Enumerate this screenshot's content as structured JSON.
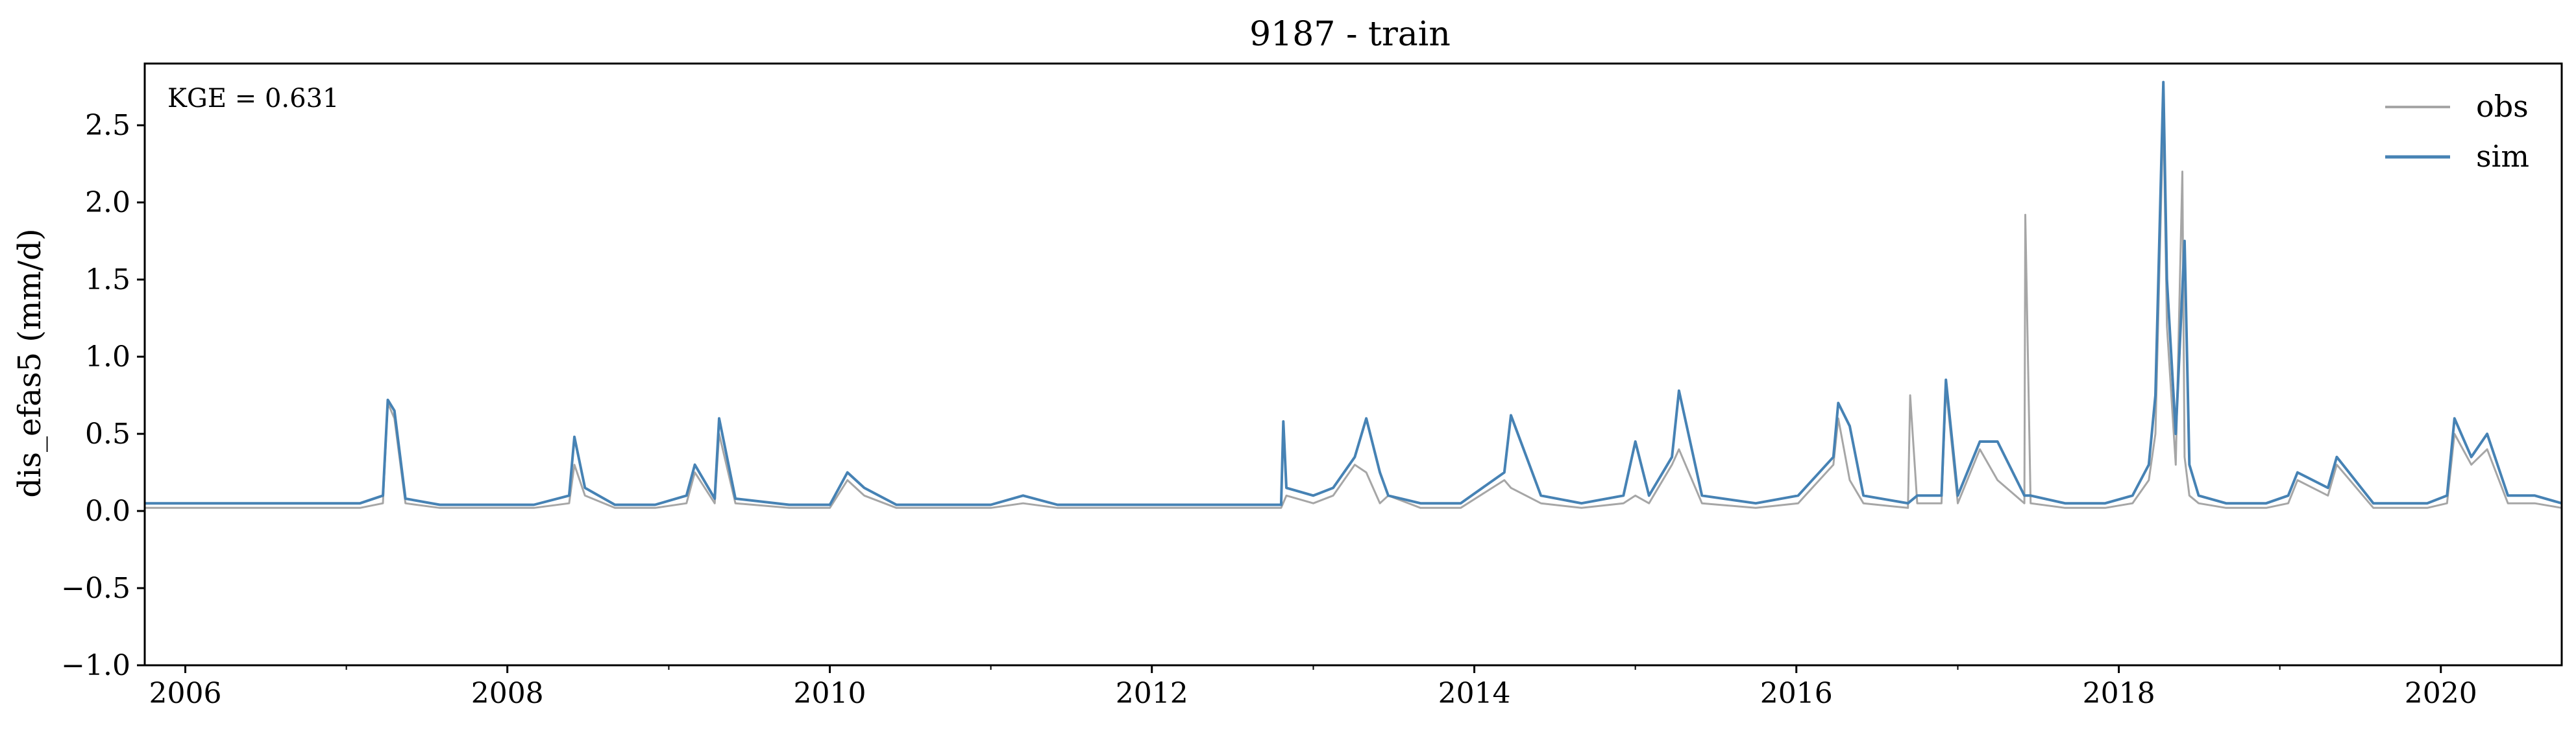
{
  "chart_data": {
    "type": "line",
    "title": "9187 - train",
    "xlabel": "",
    "ylabel": "dis_efas5 (mm/d)",
    "xlim": [
      "2005-10-01",
      "2020-10-01"
    ],
    "ylim": [
      -1.0,
      2.9
    ],
    "y_ticks": [
      -1.0,
      -0.5,
      0.0,
      0.5,
      1.0,
      1.5,
      2.0,
      2.5
    ],
    "y_tick_labels": [
      "−1.0",
      "−0.5",
      "0.0",
      "0.5",
      "1.0",
      "1.5",
      "2.0",
      "2.5"
    ],
    "x_ticks": [
      "2006-01-01",
      "2008-01-01",
      "2010-01-01",
      "2012-01-01",
      "2014-01-01",
      "2016-01-01",
      "2018-01-01",
      "2020-01-01"
    ],
    "x_tick_labels": [
      "2006",
      "2008",
      "2010",
      "2012",
      "2014",
      "2016",
      "2018",
      "2020"
    ],
    "x_minor_ticks": [
      "2007-01-01",
      "2009-01-01",
      "2011-01-01",
      "2013-01-01",
      "2015-01-01",
      "2017-01-01",
      "2019-01-01"
    ],
    "grid": false,
    "legend": "top-right",
    "annotation": "KGE = 0.631",
    "colors": {
      "obs": "#a6a6a6",
      "sim": "#4682b4"
    },
    "series": [
      {
        "name": "obs",
        "x": [
          "2005-10-01",
          "2006-01-15",
          "2006-06-01",
          "2006-09-01",
          "2006-12-01",
          "2007-02-01",
          "2007-03-25",
          "2007-04-05",
          "2007-04-20",
          "2007-05-15",
          "2007-08-01",
          "2007-12-01",
          "2008-03-01",
          "2008-05-20",
          "2008-06-01",
          "2008-06-25",
          "2008-09-01",
          "2008-12-01",
          "2009-02-10",
          "2009-03-01",
          "2009-04-15",
          "2009-04-25",
          "2009-06-01",
          "2009-10-01",
          "2010-01-01",
          "2010-02-10",
          "2010-03-20",
          "2010-06-01",
          "2010-10-01",
          "2011-01-01",
          "2011-03-15",
          "2011-06-01",
          "2011-10-01",
          "2012-03-01",
          "2012-08-01",
          "2012-10-20",
          "2012-11-01",
          "2013-01-01",
          "2013-02-15",
          "2013-04-05",
          "2013-05-01",
          "2013-06-01",
          "2013-06-20",
          "2013-09-01",
          "2013-12-01",
          "2014-03-10",
          "2014-03-25",
          "2014-06-01",
          "2014-09-01",
          "2014-12-05",
          "2015-01-01",
          "2015-02-01",
          "2015-03-25",
          "2015-04-10",
          "2015-06-01",
          "2015-10-01",
          "2016-01-05",
          "2016-03-25",
          "2016-04-05",
          "2016-05-01",
          "2016-06-01",
          "2016-09-10",
          "2016-09-15",
          "2016-10-01",
          "2016-11-25",
          "2016-12-05",
          "2017-01-01",
          "2017-02-20",
          "2017-04-01",
          "2017-06-01",
          "2017-06-03",
          "2017-06-15",
          "2017-09-01",
          "2017-12-01",
          "2018-02-01",
          "2018-03-10",
          "2018-03-25",
          "2018-04-12",
          "2018-04-20",
          "2018-05-10",
          "2018-05-25",
          "2018-05-30",
          "2018-06-10",
          "2018-07-01",
          "2018-09-01",
          "2018-12-01",
          "2019-01-20",
          "2019-02-10",
          "2019-04-20",
          "2019-05-10",
          "2019-08-01",
          "2019-12-01",
          "2020-01-15",
          "2020-02-01",
          "2020-03-10",
          "2020-04-15",
          "2020-06-01",
          "2020-08-01",
          "2020-10-01"
        ],
        "values": [
          0.02,
          0.02,
          0.02,
          0.02,
          0.02,
          0.02,
          0.05,
          0.7,
          0.6,
          0.05,
          0.02,
          0.02,
          0.02,
          0.05,
          0.3,
          0.1,
          0.02,
          0.02,
          0.05,
          0.25,
          0.05,
          0.5,
          0.05,
          0.02,
          0.02,
          0.2,
          0.1,
          0.02,
          0.02,
          0.02,
          0.05,
          0.02,
          0.02,
          0.02,
          0.02,
          0.02,
          0.1,
          0.05,
          0.1,
          0.3,
          0.25,
          0.05,
          0.1,
          0.02,
          0.02,
          0.2,
          0.15,
          0.05,
          0.02,
          0.05,
          0.1,
          0.05,
          0.3,
          0.4,
          0.05,
          0.02,
          0.05,
          0.3,
          0.6,
          0.2,
          0.05,
          0.02,
          0.75,
          0.05,
          0.05,
          0.8,
          0.05,
          0.4,
          0.2,
          0.05,
          1.92,
          0.05,
          0.02,
          0.02,
          0.05,
          0.2,
          0.5,
          2.6,
          1.2,
          0.3,
          2.2,
          0.35,
          0.1,
          0.05,
          0.02,
          0.02,
          0.05,
          0.2,
          0.1,
          0.3,
          0.02,
          0.02,
          0.05,
          0.5,
          0.3,
          0.4,
          0.05,
          0.05,
          0.02
        ]
      },
      {
        "name": "sim",
        "x": [
          "2005-10-01",
          "2006-01-15",
          "2006-06-01",
          "2006-09-01",
          "2006-12-01",
          "2007-02-01",
          "2007-03-25",
          "2007-04-05",
          "2007-04-20",
          "2007-05-15",
          "2007-08-01",
          "2007-12-01",
          "2008-03-01",
          "2008-05-20",
          "2008-06-01",
          "2008-06-25",
          "2008-09-01",
          "2008-12-01",
          "2009-02-10",
          "2009-03-01",
          "2009-04-15",
          "2009-04-25",
          "2009-06-01",
          "2009-10-01",
          "2010-01-01",
          "2010-02-10",
          "2010-03-20",
          "2010-06-01",
          "2010-10-01",
          "2011-01-01",
          "2011-03-15",
          "2011-06-01",
          "2011-10-01",
          "2012-03-01",
          "2012-08-01",
          "2012-10-20",
          "2012-10-25",
          "2012-11-01",
          "2013-01-01",
          "2013-02-15",
          "2013-04-05",
          "2013-05-01",
          "2013-06-01",
          "2013-06-20",
          "2013-09-01",
          "2013-12-01",
          "2014-03-10",
          "2014-03-25",
          "2014-06-01",
          "2014-09-01",
          "2014-12-05",
          "2015-01-01",
          "2015-02-01",
          "2015-03-25",
          "2015-04-10",
          "2015-06-01",
          "2015-10-01",
          "2016-01-05",
          "2016-03-25",
          "2016-04-05",
          "2016-05-01",
          "2016-06-01",
          "2016-09-10",
          "2016-10-01",
          "2016-11-25",
          "2016-12-05",
          "2017-01-01",
          "2017-02-20",
          "2017-04-01",
          "2017-06-01",
          "2017-06-15",
          "2017-09-01",
          "2017-12-01",
          "2018-02-01",
          "2018-03-10",
          "2018-03-25",
          "2018-04-12",
          "2018-04-20",
          "2018-05-10",
          "2018-05-30",
          "2018-06-10",
          "2018-07-01",
          "2018-09-01",
          "2018-12-01",
          "2019-01-20",
          "2019-02-10",
          "2019-04-20",
          "2019-05-10",
          "2019-08-01",
          "2019-12-01",
          "2020-01-15",
          "2020-02-01",
          "2020-03-10",
          "2020-04-15",
          "2020-06-01",
          "2020-08-01",
          "2020-10-01"
        ],
        "values": [
          0.05,
          0.05,
          0.05,
          0.05,
          0.05,
          0.05,
          0.1,
          0.72,
          0.65,
          0.08,
          0.04,
          0.04,
          0.04,
          0.1,
          0.48,
          0.15,
          0.04,
          0.04,
          0.1,
          0.3,
          0.08,
          0.6,
          0.08,
          0.04,
          0.04,
          0.25,
          0.15,
          0.04,
          0.04,
          0.04,
          0.1,
          0.04,
          0.04,
          0.04,
          0.04,
          0.04,
          0.58,
          0.15,
          0.1,
          0.15,
          0.35,
          0.6,
          0.25,
          0.1,
          0.05,
          0.05,
          0.25,
          0.62,
          0.1,
          0.05,
          0.1,
          0.45,
          0.1,
          0.35,
          0.78,
          0.1,
          0.05,
          0.1,
          0.35,
          0.7,
          0.55,
          0.1,
          0.05,
          0.1,
          0.1,
          0.85,
          0.1,
          0.45,
          0.45,
          0.1,
          0.1,
          0.05,
          0.05,
          0.1,
          0.3,
          0.75,
          2.78,
          1.5,
          0.5,
          1.75,
          0.3,
          0.1,
          0.05,
          0.05,
          0.1,
          0.25,
          0.15,
          0.35,
          0.05,
          0.05,
          0.1,
          0.6,
          0.35,
          0.5,
          0.1,
          0.1,
          0.05
        ]
      }
    ]
  }
}
